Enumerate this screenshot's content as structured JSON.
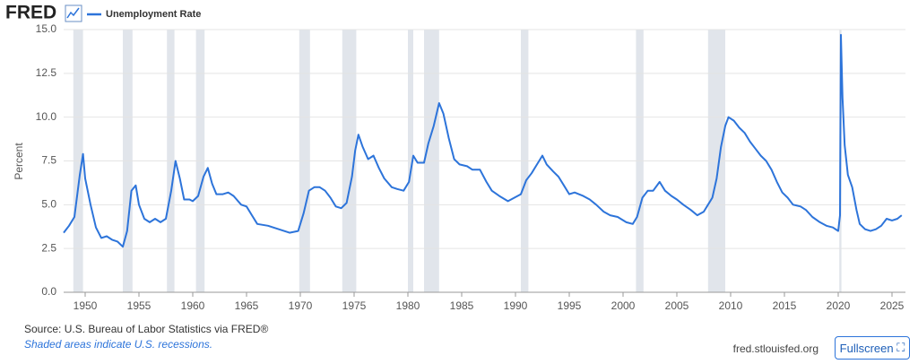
{
  "header": {
    "logo": "FRED"
  },
  "chart_data": {
    "type": "line",
    "y_label": "Percent",
    "x": [
      1948.0,
      1948.5,
      1949.0,
      1949.5,
      1949.8,
      1950.0,
      1950.5,
      1951.0,
      1951.5,
      1952.0,
      1952.5,
      1953.0,
      1953.5,
      1953.9,
      1954.3,
      1954.7,
      1955.0,
      1955.5,
      1956.0,
      1956.5,
      1957.0,
      1957.5,
      1958.0,
      1958.4,
      1958.8,
      1959.2,
      1959.7,
      1960.0,
      1960.5,
      1961.0,
      1961.4,
      1961.8,
      1962.2,
      1962.8,
      1963.3,
      1963.8,
      1964.5,
      1965.0,
      1965.5,
      1966.0,
      1967.0,
      1968.0,
      1969.0,
      1969.8,
      1970.3,
      1970.8,
      1971.3,
      1971.8,
      1972.3,
      1972.8,
      1973.3,
      1973.8,
      1974.3,
      1974.8,
      1975.1,
      1975.4,
      1975.8,
      1976.3,
      1976.8,
      1977.3,
      1977.8,
      1978.5,
      1979.0,
      1979.6,
      1980.1,
      1980.5,
      1980.9,
      1981.5,
      1981.9,
      1982.4,
      1982.9,
      1983.3,
      1983.8,
      1984.3,
      1984.8,
      1985.5,
      1986.0,
      1986.7,
      1987.3,
      1987.8,
      1988.5,
      1989.3,
      1989.9,
      1990.5,
      1991.0,
      1991.5,
      1992.0,
      1992.5,
      1992.9,
      1993.5,
      1994.0,
      1994.5,
      1995.0,
      1995.5,
      1996.3,
      1996.9,
      1997.5,
      1998.2,
      1998.8,
      1999.5,
      2000.3,
      2000.9,
      2001.3,
      2001.8,
      2002.3,
      2002.8,
      2003.4,
      2003.9,
      2004.5,
      2005.0,
      2005.6,
      2006.3,
      2006.9,
      2007.5,
      2007.9,
      2008.3,
      2008.7,
      2009.1,
      2009.5,
      2009.8,
      2010.3,
      2010.8,
      2011.3,
      2011.8,
      2012.3,
      2012.8,
      2013.3,
      2013.8,
      2014.3,
      2014.8,
      2015.3,
      2015.8,
      2016.5,
      2017.0,
      2017.6,
      2018.3,
      2018.9,
      2019.5,
      2020.0,
      2020.17,
      2020.25,
      2020.4,
      2020.6,
      2020.9,
      2021.3,
      2021.7,
      2022.0,
      2022.5,
      2023.0,
      2023.5,
      2024.0,
      2024.5,
      2025.0,
      2025.5,
      2025.9
    ],
    "series": [
      {
        "name": "Unemployment Rate",
        "color": "#2d74da",
        "values": [
          3.4,
          3.8,
          4.3,
          6.7,
          7.9,
          6.5,
          5.0,
          3.7,
          3.1,
          3.2,
          3.0,
          2.9,
          2.6,
          3.5,
          5.8,
          6.1,
          5.0,
          4.2,
          4.0,
          4.2,
          4.0,
          4.2,
          5.8,
          7.5,
          6.5,
          5.3,
          5.3,
          5.2,
          5.5,
          6.6,
          7.1,
          6.2,
          5.6,
          5.6,
          5.7,
          5.5,
          5.0,
          4.9,
          4.4,
          3.9,
          3.8,
          3.6,
          3.4,
          3.5,
          4.5,
          5.8,
          6.0,
          6.0,
          5.8,
          5.4,
          4.9,
          4.8,
          5.1,
          6.6,
          8.1,
          9.0,
          8.3,
          7.6,
          7.8,
          7.1,
          6.5,
          6.0,
          5.9,
          5.8,
          6.3,
          7.8,
          7.4,
          7.4,
          8.5,
          9.5,
          10.8,
          10.2,
          8.8,
          7.6,
          7.3,
          7.2,
          7.0,
          7.0,
          6.3,
          5.8,
          5.5,
          5.2,
          5.4,
          5.6,
          6.4,
          6.8,
          7.3,
          7.8,
          7.3,
          6.9,
          6.6,
          6.1,
          5.6,
          5.7,
          5.5,
          5.3,
          5.0,
          4.6,
          4.4,
          4.3,
          4.0,
          3.9,
          4.3,
          5.4,
          5.8,
          5.8,
          6.3,
          5.8,
          5.5,
          5.3,
          5.0,
          4.7,
          4.4,
          4.6,
          5.0,
          5.4,
          6.5,
          8.3,
          9.5,
          10.0,
          9.8,
          9.4,
          9.1,
          8.6,
          8.2,
          7.8,
          7.5,
          7.0,
          6.3,
          5.7,
          5.4,
          5.0,
          4.9,
          4.7,
          4.3,
          4.0,
          3.8,
          3.7,
          3.5,
          4.4,
          14.7,
          11.1,
          8.4,
          6.7,
          6.0,
          4.7,
          3.9,
          3.6,
          3.5,
          3.6,
          3.8,
          4.2,
          4.1,
          4.2,
          4.4
        ]
      }
    ],
    "recessions": [
      [
        1948.9,
        1949.8
      ],
      [
        1953.5,
        1954.4
      ],
      [
        1957.6,
        1958.3
      ],
      [
        1960.3,
        1961.1
      ],
      [
        1969.9,
        1970.9
      ],
      [
        1973.9,
        1975.2
      ],
      [
        1980.0,
        1980.5
      ],
      [
        1981.5,
        1982.9
      ],
      [
        1990.5,
        1991.2
      ],
      [
        2001.2,
        2001.9
      ],
      [
        2007.9,
        2009.5
      ],
      [
        2020.1,
        2020.3
      ]
    ],
    "xlim": [
      1948,
      2026.25
    ],
    "xticks": [
      1950,
      1955,
      1960,
      1965,
      1970,
      1975,
      1980,
      1985,
      1990,
      1995,
      2000,
      2005,
      2010,
      2015,
      2020,
      2025
    ],
    "ylim": [
      0,
      15
    ],
    "yticks": [
      {
        "value": 0,
        "label": "0.0"
      },
      2.5,
      {
        "value": 5,
        "label": "5.0"
      },
      7.5,
      {
        "value": 10,
        "label": "10.0"
      },
      12.5,
      {
        "value": 15,
        "label": "15.0"
      }
    ],
    "grid": true
  },
  "footer": {
    "source": "Source: U.S. Bureau of Labor Statistics via FRED®",
    "note": "Shaded areas indicate U.S. recessions.",
    "site": "fred.stlouisfed.org",
    "button": "Fullscreen"
  }
}
